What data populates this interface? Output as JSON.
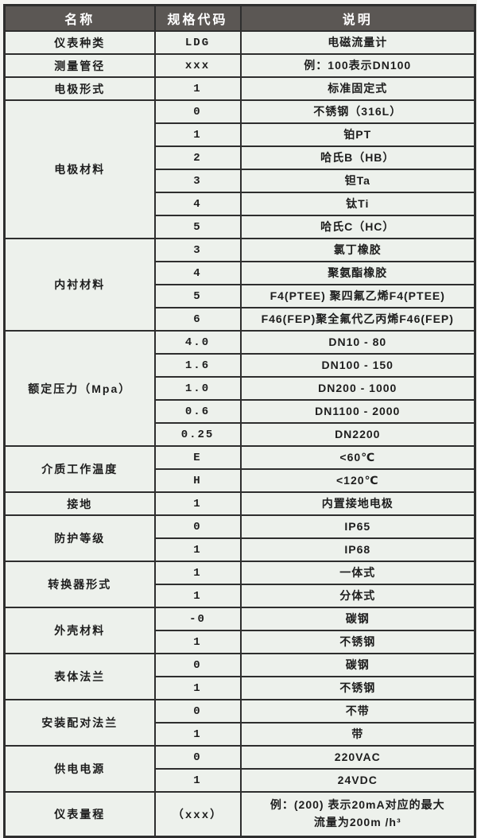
{
  "table": {
    "headers": [
      "名称",
      "规格代码",
      "说明"
    ],
    "groups": [
      {
        "name": "仪表种类",
        "rows": [
          {
            "code": "LDG",
            "desc": "电磁流量计"
          }
        ]
      },
      {
        "name": "测量管径",
        "rows": [
          {
            "code": "xxx",
            "desc": "例：100表示DN100"
          }
        ]
      },
      {
        "name": "电极形式",
        "rows": [
          {
            "code": "1",
            "desc": "标准固定式"
          }
        ]
      },
      {
        "name": "电极材料",
        "rows": [
          {
            "code": "0",
            "desc": "不锈钢（316L）"
          },
          {
            "code": "1",
            "desc": "铂PT"
          },
          {
            "code": "2",
            "desc": "哈氏B（HB）"
          },
          {
            "code": "3",
            "desc": "钽Ta"
          },
          {
            "code": "4",
            "desc": "钛Ti"
          },
          {
            "code": "5",
            "desc": "哈氏C（HC）"
          }
        ]
      },
      {
        "name": "内衬材料",
        "rows": [
          {
            "code": "3",
            "desc": "氯丁橡胶"
          },
          {
            "code": "4",
            "desc": "聚氨酯橡胶"
          },
          {
            "code": "5",
            "desc": "F4(PTEE) 聚四氟乙烯F4(PTEE)"
          },
          {
            "code": "6",
            "desc": "F46(FEP)聚全氟代乙丙烯F46(FEP)"
          }
        ]
      },
      {
        "name": "额定压力（Mpa）",
        "rows": [
          {
            "code": "4.0",
            "desc": "DN10 - 80"
          },
          {
            "code": "1.6",
            "desc": "DN100 - 150"
          },
          {
            "code": "1.0",
            "desc": "DN200 - 1000"
          },
          {
            "code": "0.6",
            "desc": "DN1100 - 2000"
          },
          {
            "code": "0.25",
            "desc": "DN2200"
          }
        ]
      },
      {
        "name": "介质工作温度",
        "rows": [
          {
            "code": "E",
            "desc": "<60℃"
          },
          {
            "code": "H",
            "desc": "<120℃"
          }
        ]
      },
      {
        "name": "接地",
        "rows": [
          {
            "code": "1",
            "desc": "内置接地电极"
          }
        ]
      },
      {
        "name": "防护等级",
        "rows": [
          {
            "code": "0",
            "desc": "IP65"
          },
          {
            "code": "1",
            "desc": "IP68"
          }
        ]
      },
      {
        "name": "转换器形式",
        "rows": [
          {
            "code": "1",
            "desc": "一体式"
          },
          {
            "code": "1",
            "desc": "分体式"
          }
        ]
      },
      {
        "name": "外壳材料",
        "rows": [
          {
            "code": "-0",
            "desc": "碳钢"
          },
          {
            "code": "1",
            "desc": "不锈钢"
          }
        ]
      },
      {
        "name": "表体法兰",
        "rows": [
          {
            "code": "0",
            "desc": "碳钢"
          },
          {
            "code": "1",
            "desc": "不锈钢"
          }
        ]
      },
      {
        "name": "安装配对法兰",
        "rows": [
          {
            "code": "0",
            "desc": "不带"
          },
          {
            "code": "1",
            "desc": "带"
          }
        ]
      },
      {
        "name": "供电电源",
        "rows": [
          {
            "code": "0",
            "desc": "220VAC"
          },
          {
            "code": "1",
            "desc": "24VDC"
          }
        ]
      },
      {
        "name": "仪表量程",
        "rows": [
          {
            "code": "（xxx）",
            "desc": "例：(200) 表示20mA对应的最大\n流量为200m /h³",
            "tall": true
          }
        ]
      }
    ],
    "colors": {
      "header_bg": "#5b5754",
      "header_text": "#ffffff",
      "cell_bg": "#edf1ec",
      "border": "#2e2e2e",
      "text": "#1d1d1d"
    }
  }
}
